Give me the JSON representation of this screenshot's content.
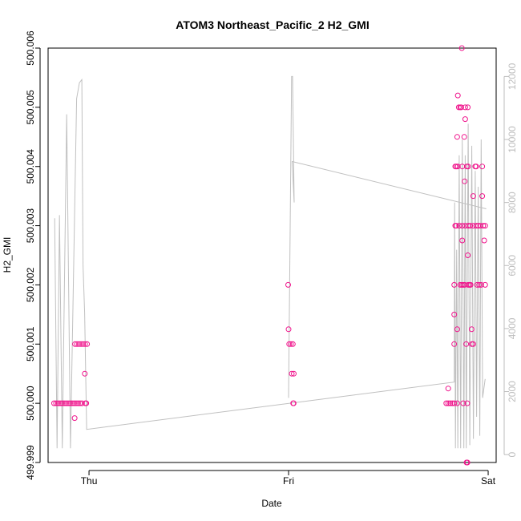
{
  "colors": {
    "points": "#f0148c",
    "altitude_line": "#c0c0c0",
    "axis": "#000000",
    "right_axis": "#bdbdbd",
    "background": "#ffffff"
  },
  "chart_data": {
    "type": "scatter",
    "title": "ATOM3 Northeast_Pacific_2 H2_GMI",
    "xlabel": "Date",
    "ylabel": "H2_GMI",
    "x_units": "days since Thu 00:00",
    "xlim": [
      -0.205,
      2.04
    ],
    "ylim": [
      499.999,
      500.006
    ],
    "y_ticks": [
      "499.999",
      "500.000",
      "500.001",
      "500.002",
      "500.003",
      "500.004",
      "500.005",
      "500.006"
    ],
    "x_ticks": [
      {
        "value": 0,
        "label": "Thu"
      },
      {
        "value": 1,
        "label": "Fri"
      },
      {
        "value": 2,
        "label": "Sat"
      }
    ],
    "right_axis": {
      "label": "",
      "ylim": [
        -250,
        12900
      ],
      "ticks": [
        "0",
        "2000",
        "4000",
        "6000",
        "8000",
        "10000",
        "12000"
      ]
    },
    "series": [
      {
        "name": "H2_GMI",
        "kind": "points",
        "points": [
          {
            "x": -0.175,
            "y": 500.0
          },
          {
            "x": -0.165,
            "y": 500.0
          },
          {
            "x": -0.155,
            "y": 500.0
          },
          {
            "x": -0.145,
            "y": 500.0
          },
          {
            "x": -0.135,
            "y": 500.0
          },
          {
            "x": -0.125,
            "y": 500.0
          },
          {
            "x": -0.115,
            "y": 500.0
          },
          {
            "x": -0.105,
            "y": 500.0
          },
          {
            "x": -0.095,
            "y": 500.0
          },
          {
            "x": -0.085,
            "y": 500.0
          },
          {
            "x": -0.075,
            "y": 500.0
          },
          {
            "x": -0.065,
            "y": 500.0
          },
          {
            "x": -0.055,
            "y": 500.0
          },
          {
            "x": -0.045,
            "y": 500.0
          },
          {
            "x": -0.035,
            "y": 500.0
          },
          {
            "x": -0.072,
            "y": 499.99975
          },
          {
            "x": -0.07,
            "y": 500.001
          },
          {
            "x": -0.06,
            "y": 500.001
          },
          {
            "x": -0.05,
            "y": 500.001
          },
          {
            "x": -0.04,
            "y": 500.001
          },
          {
            "x": -0.03,
            "y": 500.001
          },
          {
            "x": -0.02,
            "y": 500.001
          },
          {
            "x": -0.01,
            "y": 500.001
          },
          {
            "x": -0.021,
            "y": 500.0005
          },
          {
            "x": -0.018,
            "y": 500.0
          },
          {
            "x": -0.014,
            "y": 500.0
          },
          {
            "x": 0.998,
            "y": 500.002
          },
          {
            "x": 1.0,
            "y": 500.00125
          },
          {
            "x": 1.003,
            "y": 500.001
          },
          {
            "x": 1.012,
            "y": 500.001
          },
          {
            "x": 1.021,
            "y": 500.001
          },
          {
            "x": 1.016,
            "y": 500.0005
          },
          {
            "x": 1.026,
            "y": 500.0005
          },
          {
            "x": 1.023,
            "y": 500.0
          },
          {
            "x": 1.025,
            "y": 500.0
          },
          {
            "x": 1.79,
            "y": 500.0
          },
          {
            "x": 1.8,
            "y": 500.0
          },
          {
            "x": 1.81,
            "y": 500.0
          },
          {
            "x": 1.82,
            "y": 500.0
          },
          {
            "x": 1.83,
            "y": 500.0
          },
          {
            "x": 1.845,
            "y": 500.0
          },
          {
            "x": 1.875,
            "y": 500.0
          },
          {
            "x": 1.895,
            "y": 500.0
          },
          {
            "x": 1.8,
            "y": 500.00025
          },
          {
            "x": 1.83,
            "y": 500.0015
          },
          {
            "x": 1.83,
            "y": 500.001
          },
          {
            "x": 1.845,
            "y": 500.00125
          },
          {
            "x": 1.89,
            "y": 500.001
          },
          {
            "x": 1.917,
            "y": 500.00125
          },
          {
            "x": 1.918,
            "y": 500.001
          },
          {
            "x": 1.925,
            "y": 500.001
          },
          {
            "x": 1.835,
            "y": 500.004
          },
          {
            "x": 1.841,
            "y": 500.004
          },
          {
            "x": 1.848,
            "y": 500.004
          },
          {
            "x": 1.87,
            "y": 500.004
          },
          {
            "x": 1.893,
            "y": 500.004
          },
          {
            "x": 1.9,
            "y": 500.004
          },
          {
            "x": 1.935,
            "y": 500.004
          },
          {
            "x": 1.94,
            "y": 500.004
          },
          {
            "x": 1.97,
            "y": 500.004
          },
          {
            "x": 1.848,
            "y": 500.0052
          },
          {
            "x": 1.853,
            "y": 500.005
          },
          {
            "x": 1.86,
            "y": 500.005
          },
          {
            "x": 1.865,
            "y": 500.005
          },
          {
            "x": 1.885,
            "y": 500.005
          },
          {
            "x": 1.898,
            "y": 500.005
          },
          {
            "x": 1.868,
            "y": 500.006
          },
          {
            "x": 1.885,
            "y": 500.0048
          },
          {
            "x": 1.88,
            "y": 500.0045
          },
          {
            "x": 1.845,
            "y": 500.0045
          },
          {
            "x": 1.882,
            "y": 500.00375
          },
          {
            "x": 1.925,
            "y": 500.0035
          },
          {
            "x": 1.97,
            "y": 500.0035
          },
          {
            "x": 1.835,
            "y": 500.003
          },
          {
            "x": 1.84,
            "y": 500.003
          },
          {
            "x": 1.855,
            "y": 500.003
          },
          {
            "x": 1.87,
            "y": 500.003
          },
          {
            "x": 1.885,
            "y": 500.003
          },
          {
            "x": 1.9,
            "y": 500.003
          },
          {
            "x": 1.91,
            "y": 500.003
          },
          {
            "x": 1.925,
            "y": 500.003
          },
          {
            "x": 1.94,
            "y": 500.003
          },
          {
            "x": 1.95,
            "y": 500.003
          },
          {
            "x": 1.96,
            "y": 500.003
          },
          {
            "x": 1.975,
            "y": 500.003
          },
          {
            "x": 1.985,
            "y": 500.003
          },
          {
            "x": 1.87,
            "y": 500.00275
          },
          {
            "x": 1.898,
            "y": 500.0025
          },
          {
            "x": 1.98,
            "y": 500.00275
          },
          {
            "x": 1.83,
            "y": 500.002
          },
          {
            "x": 1.86,
            "y": 500.002
          },
          {
            "x": 1.868,
            "y": 500.002
          },
          {
            "x": 1.875,
            "y": 500.002
          },
          {
            "x": 1.882,
            "y": 500.002
          },
          {
            "x": 1.9,
            "y": 500.002
          },
          {
            "x": 1.907,
            "y": 500.002
          },
          {
            "x": 1.912,
            "y": 500.002
          },
          {
            "x": 1.945,
            "y": 500.002
          },
          {
            "x": 1.955,
            "y": 500.002
          },
          {
            "x": 1.965,
            "y": 500.002
          },
          {
            "x": 1.985,
            "y": 500.002
          },
          {
            "x": 1.896,
            "y": 499.999
          },
          {
            "x": 1.892,
            "y": 499.999
          }
        ]
      },
      {
        "name": "altitude",
        "kind": "line",
        "axis": "right",
        "points": [
          {
            "x": -0.172,
            "y": 7500
          },
          {
            "x": -0.16,
            "y": 200
          },
          {
            "x": -0.148,
            "y": 7600
          },
          {
            "x": -0.134,
            "y": 200
          },
          {
            "x": -0.112,
            "y": 10800
          },
          {
            "x": -0.093,
            "y": 200
          },
          {
            "x": -0.062,
            "y": 11300
          },
          {
            "x": -0.048,
            "y": 11800
          },
          {
            "x": -0.036,
            "y": 11900
          },
          {
            "x": -0.03,
            "y": 6000
          },
          {
            "x": -0.022,
            "y": 4500
          },
          {
            "x": -0.012,
            "y": 800
          },
          {
            "x": 1.83,
            "y": 2300
          },
          {
            "x": 1.832,
            "y": 8000
          },
          {
            "x": 1.836,
            "y": 200
          },
          {
            "x": 1.842,
            "y": 6500
          },
          {
            "x": 1.848,
            "y": 200
          },
          {
            "x": 1.855,
            "y": 9500
          },
          {
            "x": 1.862,
            "y": 200
          },
          {
            "x": 1.87,
            "y": 10000
          },
          {
            "x": 1.878,
            "y": 200
          },
          {
            "x": 1.885,
            "y": 9500
          },
          {
            "x": 1.89,
            "y": 200
          },
          {
            "x": 1.9,
            "y": 10500
          },
          {
            "x": 1.908,
            "y": 300
          },
          {
            "x": 1.918,
            "y": 9800
          },
          {
            "x": 1.926,
            "y": 500
          },
          {
            "x": 1.935,
            "y": 9000
          },
          {
            "x": 1.942,
            "y": 1200
          },
          {
            "x": 1.95,
            "y": 8500
          },
          {
            "x": 1.958,
            "y": 600
          },
          {
            "x": 1.965,
            "y": 10000
          },
          {
            "x": 1.972,
            "y": 1800
          },
          {
            "x": 1.985,
            "y": 2400
          }
        ],
        "segment2": [
          {
            "x": 1.0,
            "y": 1800
          },
          {
            "x": 1.015,
            "y": 12000
          },
          {
            "x": 1.02,
            "y": 12000
          },
          {
            "x": 1.028,
            "y": 8000
          },
          {
            "x": 1.018,
            "y": 9300
          },
          {
            "x": 1.99,
            "y": 7800
          }
        ]
      }
    ]
  }
}
